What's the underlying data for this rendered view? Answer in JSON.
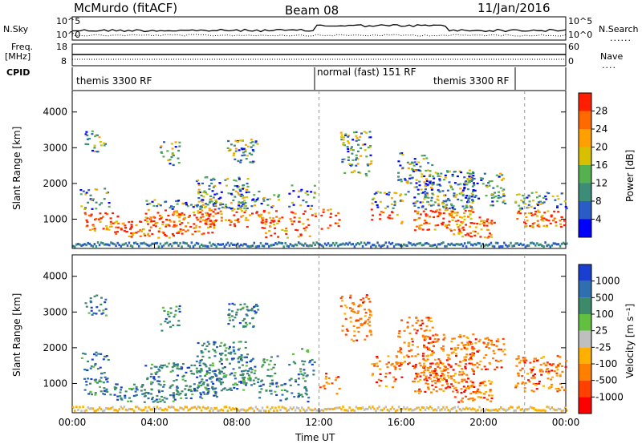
{
  "header": {
    "title": "McMurdo (fitACF)",
    "beam": "Beam 08",
    "date": "11/Jan/2016"
  },
  "top_panels": {
    "nsky_label": "N.Sky",
    "nsearch_label": "N.Search",
    "nsky_ticks": [
      "10^5",
      "10^0"
    ],
    "freq_label": "Freq.",
    "freq_unit": "[MHz]",
    "freq_ticks": [
      "18",
      "8"
    ],
    "nave_label": "Nave",
    "nave_ticks": [
      "60",
      "0"
    ],
    "cpid_label": "CPID",
    "cpid_segments": [
      {
        "label": "themis 3300 RF",
        "start_hour": 0,
        "end_hour": 12
      },
      {
        "label": "normal (fast) 151 RF",
        "start_hour": 12,
        "end_hour": 22
      },
      {
        "label": "themis 3300 RF",
        "start_hour": 18,
        "end_hour": 22
      }
    ]
  },
  "chart_data": [
    {
      "type": "heatmap",
      "name": "power",
      "ylabel": "Slant Range [km]",
      "xlabel": "",
      "xlim": [
        0,
        24
      ],
      "ylim": [
        180,
        4600
      ],
      "yticks": [
        "1000",
        "2000",
        "3000",
        "4000"
      ],
      "colorbar_label": "Power [dB]",
      "colorbar_ticks": [
        "4",
        "8",
        "12",
        "16",
        "20",
        "24",
        "28"
      ],
      "colors": [
        "#0000ff",
        "#2a5cc8",
        "#3c8c78",
        "#55b050",
        "#d8c000",
        "#ffa000",
        "#ff6a00",
        "#ff1f00"
      ]
    },
    {
      "type": "heatmap",
      "name": "velocity",
      "ylabel": "Slant Range [km]",
      "xlabel": "Time UT",
      "xlim": [
        0,
        24
      ],
      "ylim": [
        180,
        4600
      ],
      "yticks": [
        "1000",
        "2000",
        "3000",
        "4000"
      ],
      "xticks": [
        "00:00",
        "04:00",
        "08:00",
        "12:00",
        "16:00",
        "20:00",
        "00:00"
      ],
      "colorbar_label": "Velocity [m s⁻¹]",
      "colorbar_ticks": [
        "1000",
        "500",
        "100",
        "25",
        "-25",
        "-100",
        "-500",
        "-1000"
      ],
      "colors": [
        "#1a3fd0",
        "#2f6fb0",
        "#3d8a6a",
        "#62c040",
        "#bfbfbf",
        "#ffb000",
        "#ff8000",
        "#ff4000",
        "#ff0000"
      ]
    }
  ]
}
